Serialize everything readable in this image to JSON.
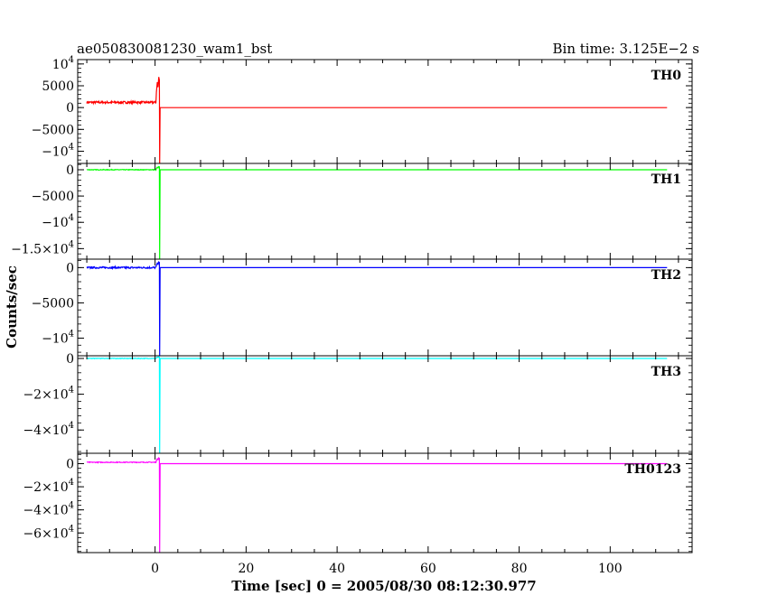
{
  "chart_data": {
    "type": "line",
    "title": "ae050830081230_wam1_bst",
    "subtitle": "Bin time: 3.125E−2 s",
    "xlabel": "Time [sec] 0 = 2005/08/30 08:12:30.977",
    "ylabel": "Counts/sec",
    "xlim": [
      -17,
      118
    ],
    "x_ticks": [
      0,
      20,
      40,
      60,
      80,
      100
    ],
    "grid": false,
    "panels": [
      {
        "name": "TH0",
        "color": "#ff0000",
        "ylim": [
          -12800,
          11000
        ],
        "y_ticks": [
          {
            "value": 10000,
            "mant": "10",
            "exp": "4"
          },
          {
            "value": 5000,
            "mant": "5000",
            "exp": ""
          },
          {
            "value": 0,
            "mant": "0",
            "exp": ""
          },
          {
            "value": -5000,
            "mant": "−5000",
            "exp": ""
          },
          {
            "value": -10000,
            "mant": "−10",
            "exp": "4"
          }
        ],
        "pre_level": 1200,
        "pre_noise": 250,
        "peak": 7000,
        "drop": -12800,
        "post_level": 0
      },
      {
        "name": "TH1",
        "color": "#00ff00",
        "ylim": [
          -17000,
          1200
        ],
        "y_ticks": [
          {
            "value": 0,
            "mant": "0",
            "exp": ""
          },
          {
            "value": -5000,
            "mant": "−5000",
            "exp": ""
          },
          {
            "value": -10000,
            "mant": "−10",
            "exp": "4"
          },
          {
            "value": -15000,
            "mant": "−1.5×10",
            "exp": "4"
          }
        ],
        "pre_level": 0,
        "pre_noise": 60,
        "peak": 600,
        "drop": -17000,
        "post_level": 0
      },
      {
        "name": "TH2",
        "color": "#0000ff",
        "ylim": [
          -12500,
          1200
        ],
        "y_ticks": [
          {
            "value": 0,
            "mant": "0",
            "exp": ""
          },
          {
            "value": -5000,
            "mant": "−5000",
            "exp": ""
          },
          {
            "value": -10000,
            "mant": "−10",
            "exp": "4"
          }
        ],
        "pre_level": 0,
        "pre_noise": 120,
        "peak": 800,
        "drop": -12500,
        "post_level": 0
      },
      {
        "name": "TH3",
        "color": "#00ffff",
        "ylim": [
          -53000,
          1500
        ],
        "y_ticks": [
          {
            "value": 0,
            "mant": "0",
            "exp": ""
          },
          {
            "value": -20000,
            "mant": "−2×10",
            "exp": "4"
          },
          {
            "value": -40000,
            "mant": "−4×10",
            "exp": "4"
          }
        ],
        "pre_level": 0,
        "pre_noise": 150,
        "peak": 900,
        "drop": -53000,
        "post_level": 0
      },
      {
        "name": "TH0123",
        "color": "#ff00ff",
        "ylim": [
          -77000,
          9000
        ],
        "y_ticks": [
          {
            "value": 0,
            "mant": "0",
            "exp": ""
          },
          {
            "value": -20000,
            "mant": "−2×10",
            "exp": "4"
          },
          {
            "value": -40000,
            "mant": "−4×10",
            "exp": "4"
          },
          {
            "value": -60000,
            "mant": "−6×10",
            "exp": "4"
          }
        ],
        "pre_level": 1200,
        "pre_noise": 300,
        "peak": 5000,
        "drop": -77000,
        "post_level": 0
      }
    ],
    "series_x_range": [
      -15,
      112.5
    ],
    "event_time": 1.0
  }
}
